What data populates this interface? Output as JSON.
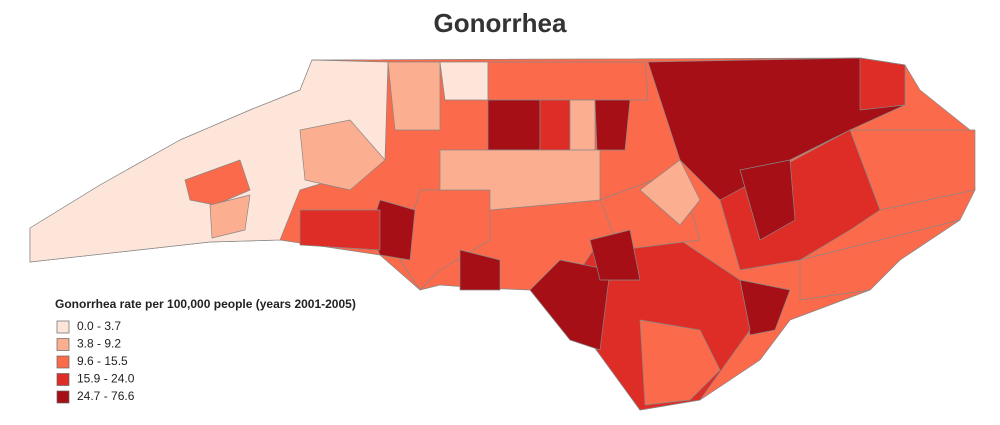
{
  "title": "Gonorrhea",
  "legend": {
    "title": "Gonorrhea rate per 100,000 people (years 2001-2005)",
    "items": [
      {
        "label": "0.0 - 3.7",
        "color": "#fee5d9"
      },
      {
        "label": "3.8 - 9.2",
        "color": "#fcae91"
      },
      {
        "label": "9.6 - 15.5",
        "color": "#fb6a4a"
      },
      {
        "label": "15.9 - 24.0",
        "color": "#de2d26"
      },
      {
        "label": "24.7 - 76.6",
        "color": "#a50f15"
      }
    ]
  }
}
